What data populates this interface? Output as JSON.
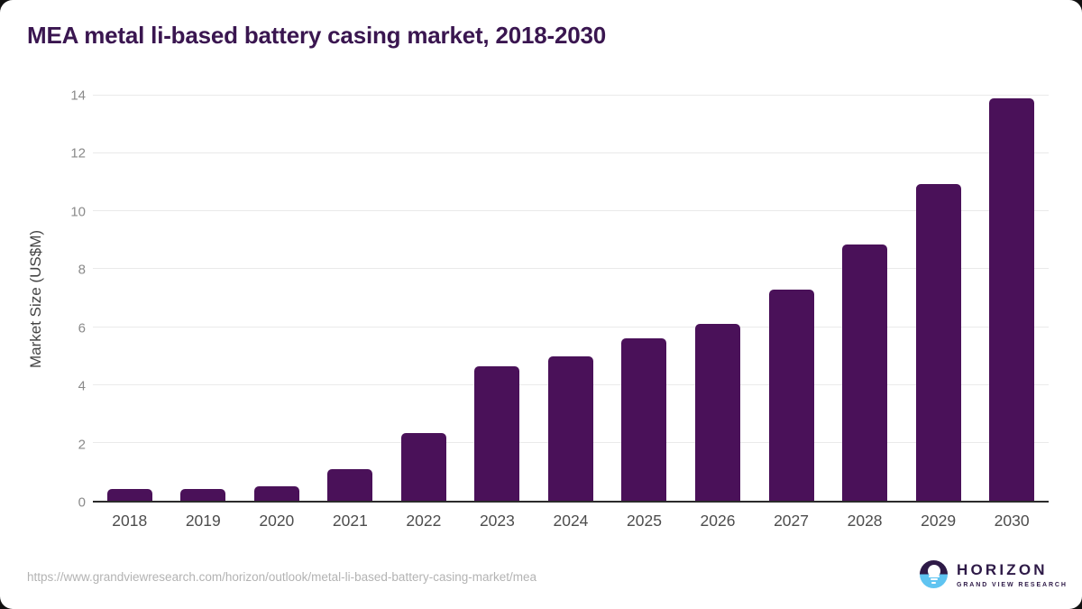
{
  "title": "MEA metal li-based battery casing market, 2018-2030",
  "colors": {
    "bar": "#4A1159",
    "title": "#3A1650",
    "grid": "#EAEAEA",
    "axis": "#2B2B2B",
    "ytick": "#8A8A8A",
    "xlabel": "#4D4D4D",
    "url": "#B3B3B3",
    "logo_dark": "#2E1A47",
    "logo_blue": "#5FC4F1"
  },
  "chart_data": {
    "type": "bar",
    "categories": [
      "2018",
      "2019",
      "2020",
      "2021",
      "2022",
      "2023",
      "2024",
      "2025",
      "2026",
      "2027",
      "2028",
      "2029",
      "2030"
    ],
    "values": [
      0.4,
      0.4,
      0.5,
      1.1,
      2.35,
      4.65,
      5.0,
      5.6,
      6.1,
      7.3,
      8.85,
      10.95,
      13.9
    ],
    "title": "MEA metal li-based battery casing market, 2018-2030",
    "xlabel": "",
    "ylabel": "Market Size (US$M)",
    "ylim": [
      0,
      14
    ],
    "yticks": [
      0,
      2,
      4,
      6,
      8,
      10,
      12,
      14
    ],
    "grid": true,
    "legend": false,
    "bar_color": "#4A1159"
  },
  "footer": {
    "url": "https://www.grandviewresearch.com/horizon/outlook/metal-li-based-battery-casing-market/mea",
    "logo": {
      "name": "HORIZON",
      "subtitle": "GRAND VIEW RESEARCH"
    }
  }
}
